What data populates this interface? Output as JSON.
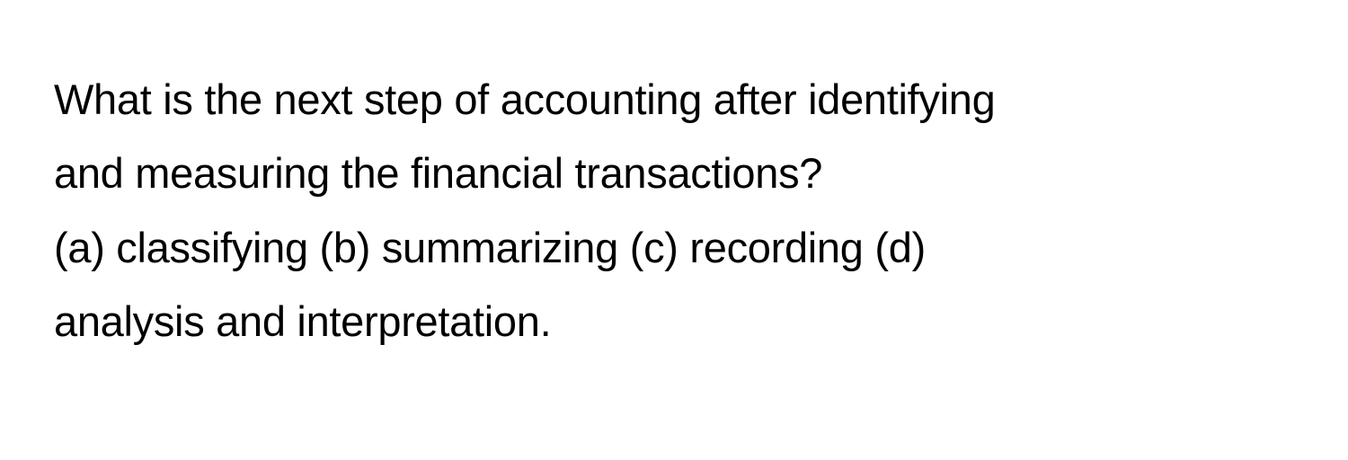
{
  "question": {
    "stem_line1": "What is the next step of accounting after identifying",
    "stem_line2": "and measuring the financial transactions?",
    "options_line1": "(a) classifying (b) summarizing (c) recording (d)",
    "options_line2": "analysis and interpretation.",
    "text_color": "#000000",
    "background_color": "#ffffff",
    "font_size": 47,
    "line_height": 1.75
  }
}
